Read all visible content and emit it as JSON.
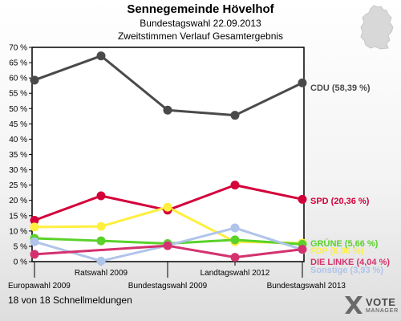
{
  "header": {
    "title": "Sennegemeinde Hövelhof",
    "subtitle": "Bundestagswahl 22.09.2013",
    "description": "Zweitstimmen Verlauf Gesamtergebnis"
  },
  "footer": {
    "text": "18 von 18 Schnellmeldungen"
  },
  "logo": {
    "word1": "VOTE",
    "word2": "MANAGER"
  },
  "chart_data": {
    "type": "line",
    "categories": [
      "Europawahl 2009",
      "Ratswahl 2009",
      "Bundestagswahl 2009",
      "Landtagswahl 2012",
      "Bundestagswahl 2013"
    ],
    "ylim": [
      0,
      70
    ],
    "yticks": [
      0,
      5,
      10,
      15,
      20,
      25,
      30,
      35,
      40,
      45,
      50,
      55,
      60,
      65,
      70
    ],
    "ytick_labels": [
      "0 %",
      "5 %",
      "10 %",
      "15 %",
      "20 %",
      "25 %",
      "30 %",
      "35 %",
      "40 %",
      "45 %",
      "50 %",
      "55 %",
      "60 %",
      "65 %",
      "70 %"
    ],
    "grid": false,
    "series": [
      {
        "name": "CDU",
        "label": "CDU (58,39 %)",
        "color": "#4a4a4a",
        "values": [
          59.3,
          67.2,
          49.5,
          47.8,
          58.39
        ]
      },
      {
        "name": "SPD",
        "label": "SPD (20,36 %)",
        "color": "#d4003a",
        "values": [
          13.5,
          21.5,
          16.8,
          25.0,
          20.36
        ]
      },
      {
        "name": "FDP",
        "label": "FDP (6,06 %)",
        "color": "#ffef3f",
        "values": [
          11.3,
          11.5,
          17.8,
          6.5,
          6.06
        ]
      },
      {
        "name": "GRÜNE",
        "label": "GRÜNE (5,66 %)",
        "color": "#5ad22a",
        "values": [
          7.6,
          6.8,
          5.9,
          7.1,
          5.66
        ]
      },
      {
        "name": "Sonstige",
        "label": "Sonstige (3,93 %)",
        "color": "#b0c4ea",
        "values": [
          6.5,
          0.2,
          5.3,
          11.0,
          3.93
        ]
      },
      {
        "name": "DIE LINKE",
        "label": "DIE LINKE (4,04 %)",
        "color": "#d4326e",
        "values": [
          2.4,
          null,
          5.2,
          1.4,
          4.04
        ]
      }
    ]
  }
}
